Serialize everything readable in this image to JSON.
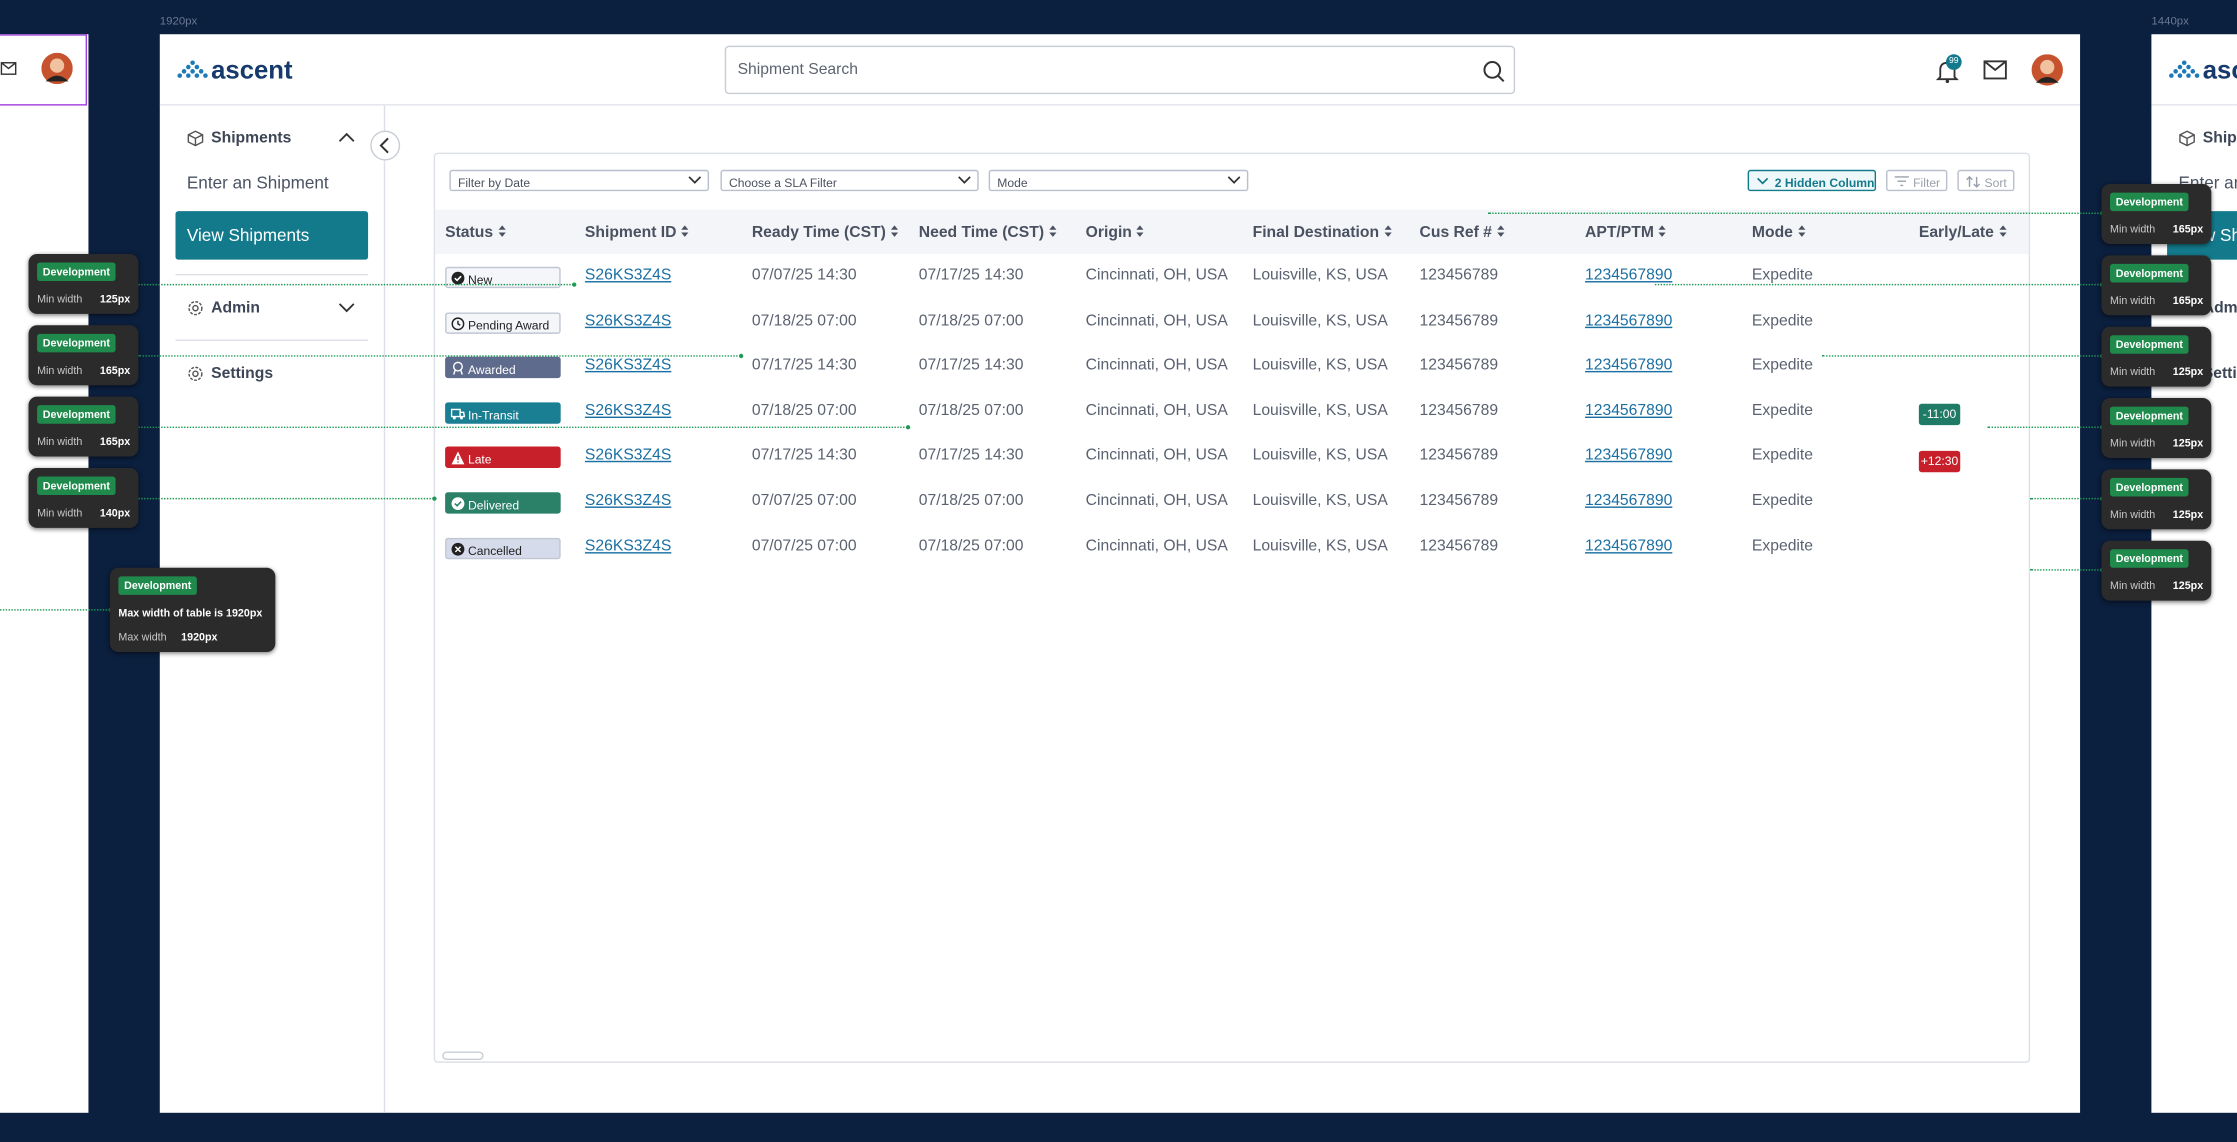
{
  "canvas": {
    "frame_label_main": "1920px",
    "frame_label_right": "1440px"
  },
  "header": {
    "logo": "ascent",
    "search_placeholder": "Shipment Search",
    "notification_count": "99"
  },
  "sidebar": {
    "shipments": "Shipments",
    "enter": "Enter an Shipment",
    "view": "View Shipments",
    "admin": "Admin",
    "settings": "Settings"
  },
  "filters": {
    "date": "Filter by Date",
    "sla": "Choose a SLA Filter",
    "mode": "Mode",
    "hidden_columns": "2 Hidden Column",
    "filter": "Filter",
    "sort": "Sort"
  },
  "table": {
    "columns": [
      "Status",
      "Shipment ID",
      "Ready Time (CST)",
      "Need Time (CST)",
      "Origin",
      "Final Destination",
      "Cus Ref #",
      "APT/PTM",
      "Mode",
      "Early/Late"
    ],
    "rows": [
      {
        "status": "New",
        "id": "S26KS3Z4S",
        "ready": "07/07/25 14:30",
        "need": "07/17/25 14:30",
        "origin": "Cincinnati, OH, USA",
        "dest": "Louisville, KS, USA",
        "cus_ref": "123456789",
        "apt": "1234567890",
        "mode": "Expedite"
      },
      {
        "status": "Pending Award",
        "id": "S26KS3Z4S",
        "ready": "07/18/25 07:00",
        "need": "07/18/25 07:00",
        "origin": "Cincinnati, OH, USA",
        "dest": "Louisville, KS, USA",
        "cus_ref": "123456789",
        "apt": "1234567890",
        "mode": "Expedite"
      },
      {
        "status": "Awarded",
        "id": "S26KS3Z4S",
        "ready": "07/17/25 14:30",
        "need": "07/17/25 14:30",
        "origin": "Cincinnati, OH, USA",
        "dest": "Louisville, KS, USA",
        "cus_ref": "123456789",
        "apt": "1234567890",
        "mode": "Expedite"
      },
      {
        "status": "In-Transit",
        "id": "S26KS3Z4S",
        "ready": "07/18/25 07:00",
        "need": "07/18/25 07:00",
        "origin": "Cincinnati, OH, USA",
        "dest": "Louisville, KS, USA",
        "cus_ref": "123456789",
        "apt": "1234567890",
        "mode": "Expedite",
        "early_late": "-11:00"
      },
      {
        "status": "Late",
        "id": "S26KS3Z4S",
        "ready": "07/17/25 14:30",
        "need": "07/17/25 14:30",
        "origin": "Cincinnati, OH, USA",
        "dest": "Louisville, KS, USA",
        "cus_ref": "123456789",
        "apt": "1234567890",
        "mode": "Expedite",
        "early_late": "+12:30"
      },
      {
        "status": "Delivered",
        "id": "S26KS3Z4S",
        "ready": "07/07/25 07:00",
        "need": "07/18/25 07:00",
        "origin": "Cincinnati, OH, USA",
        "dest": "Louisville, KS, USA",
        "cus_ref": "123456789",
        "apt": "1234567890",
        "mode": "Expedite"
      },
      {
        "status": "Cancelled",
        "id": "S26KS3Z4S",
        "ready": "07/07/25 07:00",
        "need": "07/18/25 07:00",
        "origin": "Cincinnati, OH, USA",
        "dest": "Louisville, KS, USA",
        "cus_ref": "123456789",
        "apt": "1234567890",
        "mode": "Expedite"
      }
    ]
  },
  "annotations": {
    "left": [
      {
        "tag": "Development",
        "label": "Min width",
        "value": "125px"
      },
      {
        "tag": "Development",
        "label": "Min width",
        "value": "165px"
      },
      {
        "tag": "Development",
        "label": "Min width",
        "value": "165px"
      },
      {
        "tag": "Development",
        "label": "Min width",
        "value": "140px"
      }
    ],
    "table_note": {
      "tag": "Development",
      "text": "Max width of table is 1920px",
      "label": "Max width",
      "value": "1920px"
    },
    "right": [
      {
        "tag": "Development",
        "label": "Min width",
        "value": "165px"
      },
      {
        "tag": "Development",
        "label": "Min width",
        "value": "165px"
      },
      {
        "tag": "Development",
        "label": "Min width",
        "value": "125px"
      },
      {
        "tag": "Development",
        "label": "Min width",
        "value": "125px"
      },
      {
        "tag": "Development",
        "label": "Min width",
        "value": "125px"
      },
      {
        "tag": "Development",
        "label": "Min width",
        "value": "125px"
      }
    ]
  },
  "right_frame": {
    "logo": "ascent",
    "shipments": "Shipments",
    "enter": "Enter an Shipment",
    "view": "View Shipments",
    "admin": "Admin",
    "settings": "Settings"
  }
}
